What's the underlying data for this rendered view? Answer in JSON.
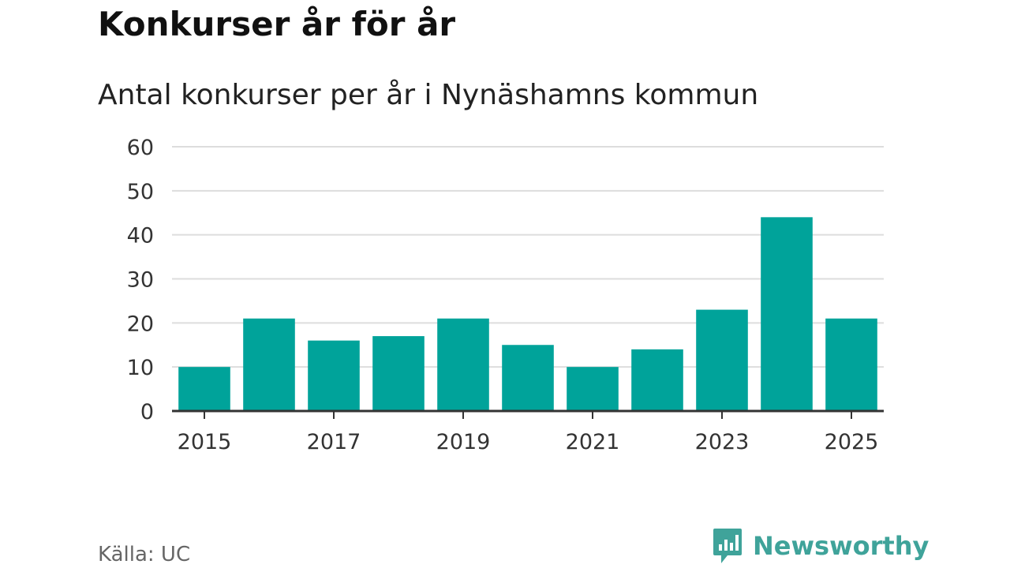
{
  "chart_data": {
    "type": "bar",
    "title": "Konkurser år för år",
    "subtitle": "Antal konkurser per år i Nynäshamns kommun",
    "categories": [
      "2015",
      "2016",
      "2017",
      "2018",
      "2019",
      "2020",
      "2021",
      "2022",
      "2023",
      "2024",
      "2025"
    ],
    "values": [
      10,
      21,
      16,
      17,
      21,
      15,
      10,
      14,
      23,
      44,
      21
    ],
    "xtick_labels": [
      "2015",
      "2017",
      "2019",
      "2021",
      "2023",
      "2025"
    ],
    "yticks": [
      0,
      10,
      20,
      30,
      40,
      50,
      60
    ],
    "ylim": [
      0,
      60
    ],
    "xlabel": "",
    "ylabel": "",
    "grid": true,
    "bar_color": "#00a39a",
    "grid_color": "#dddddd",
    "axis_color": "#333333"
  },
  "footer": {
    "source": "Källa: UC",
    "brand": "Newsworthy",
    "brand_color": "#3fa39a",
    "brand_icon": "newsworthy-logo-icon"
  }
}
